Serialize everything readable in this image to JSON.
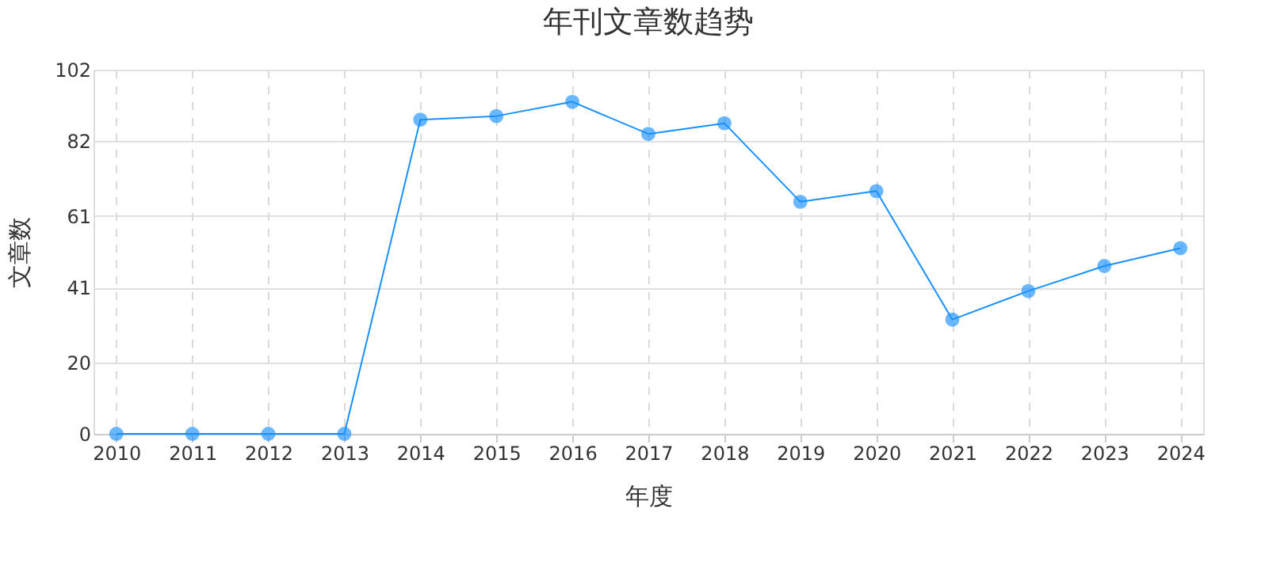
{
  "chart_data": {
    "type": "line",
    "title": "年刊文章数趋势",
    "xlabel": "年度",
    "ylabel": "文章数",
    "categories": [
      "2010",
      "2011",
      "2012",
      "2013",
      "2014",
      "2015",
      "2016",
      "2017",
      "2018",
      "2019",
      "2020",
      "2021",
      "2022",
      "2023",
      "2024"
    ],
    "series": [
      {
        "color": "#1890ff",
        "values": [
          0,
          0,
          0,
          0,
          88,
          89,
          93,
          84,
          87,
          65,
          68,
          32,
          40,
          47,
          52
        ]
      }
    ],
    "ylim": [
      0,
      102
    ],
    "yticks": [
      0,
      20,
      41,
      61,
      82,
      102
    ],
    "grid": true,
    "marker": "circle",
    "line_style": "solid"
  }
}
